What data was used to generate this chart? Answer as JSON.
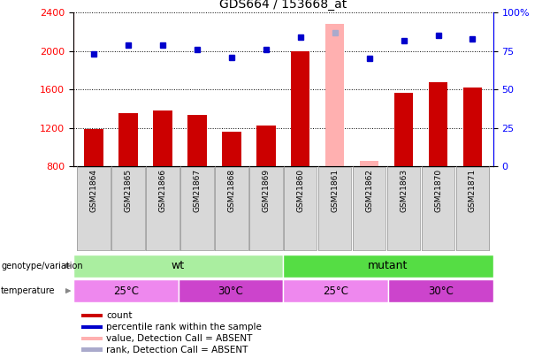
{
  "title": "GDS664 / 153668_at",
  "samples": [
    "GSM21864",
    "GSM21865",
    "GSM21866",
    "GSM21867",
    "GSM21868",
    "GSM21869",
    "GSM21860",
    "GSM21861",
    "GSM21862",
    "GSM21863",
    "GSM21870",
    "GSM21871"
  ],
  "count_values": [
    1190,
    1350,
    1380,
    1340,
    1165,
    1225,
    2000,
    null,
    null,
    1570,
    1680,
    1620
  ],
  "count_absent_values": [
    null,
    null,
    null,
    null,
    null,
    null,
    null,
    2280,
    860,
    null,
    null,
    null
  ],
  "rank_values": [
    73,
    79,
    79,
    76,
    71,
    76,
    84,
    null,
    70,
    82,
    85,
    83
  ],
  "rank_absent_values": [
    null,
    null,
    null,
    null,
    null,
    null,
    null,
    87,
    null,
    null,
    null,
    null
  ],
  "ylim_left": [
    800,
    2400
  ],
  "ylim_right": [
    0,
    100
  ],
  "yticks_left": [
    800,
    1200,
    1600,
    2000,
    2400
  ],
  "yticks_right": [
    0,
    25,
    50,
    75,
    100
  ],
  "bar_width": 0.55,
  "bar_color_present": "#cc0000",
  "bar_color_absent": "#ffb0b0",
  "dot_color_present": "#0000cc",
  "dot_color_absent": "#aaaacc",
  "genotype_wt_color": "#aaeea0",
  "genotype_mutant_color": "#55dd44",
  "temp_25_color": "#ee88ee",
  "temp_30_color": "#cc44cc",
  "legend_items": [
    {
      "label": "count",
      "color": "#cc0000"
    },
    {
      "label": "percentile rank within the sample",
      "color": "#0000cc"
    },
    {
      "label": "value, Detection Call = ABSENT",
      "color": "#ffb0b0"
    },
    {
      "label": "rank, Detection Call = ABSENT",
      "color": "#aaaacc"
    }
  ]
}
